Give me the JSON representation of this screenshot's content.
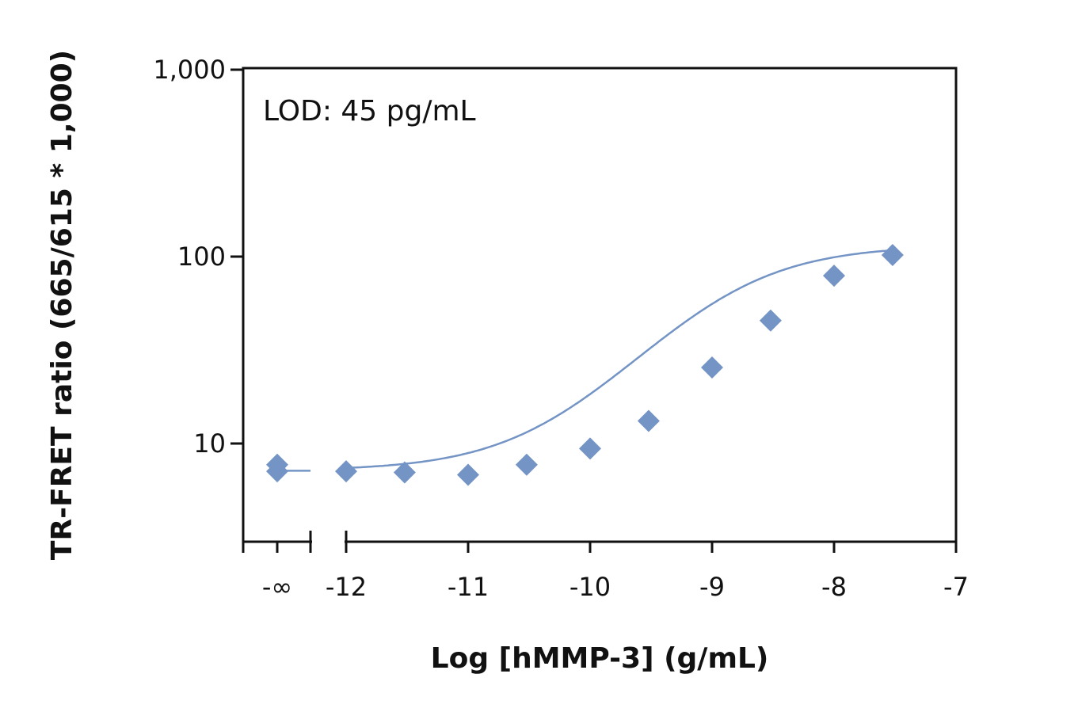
{
  "chart_data": {
    "type": "scatter",
    "xlabel": "Log [hMMP-3] (g/mL)",
    "ylabel": "TR-FRET ratio (665/615 * 1,000)",
    "annotation": "LOD: 45 pg/mL",
    "y_scale": "log",
    "ylim": [
      3.2,
      1000
    ],
    "xlim": [
      -12.85,
      -7
    ],
    "x_ticks": [
      -12,
      -11,
      -10,
      -9,
      -8,
      -7
    ],
    "x_tick_labels": [
      "-12",
      "-11",
      "-10",
      "-9",
      "-8",
      "-7"
    ],
    "x_break_label": "-∞",
    "y_ticks": [
      10,
      100,
      1000
    ],
    "y_tick_labels": [
      "10",
      "100",
      "1,000"
    ],
    "grid": false,
    "color": "#7394c5",
    "marker": "diamond",
    "zero_concentration_points": [
      {
        "x": "-∞",
        "y": 7.7
      },
      {
        "x": "-∞",
        "y": 7.1
      }
    ],
    "points": [
      {
        "x": -12.0,
        "y": 7.1
      },
      {
        "x": -11.52,
        "y": 7.0
      },
      {
        "x": -11.0,
        "y": 6.8
      },
      {
        "x": -10.52,
        "y": 7.7
      },
      {
        "x": -10.0,
        "y": 9.4
      },
      {
        "x": -9.52,
        "y": 13.2
      },
      {
        "x": -9.0,
        "y": 25.5
      },
      {
        "x": -8.52,
        "y": 45.5
      },
      {
        "x": -8.0,
        "y": 79.0
      },
      {
        "x": -7.52,
        "y": 102.0
      }
    ],
    "fit_curve": {
      "type": "4PL",
      "bottom": 7.15,
      "top": 115,
      "log_ec50": -8.9,
      "hill": 0.85
    }
  }
}
